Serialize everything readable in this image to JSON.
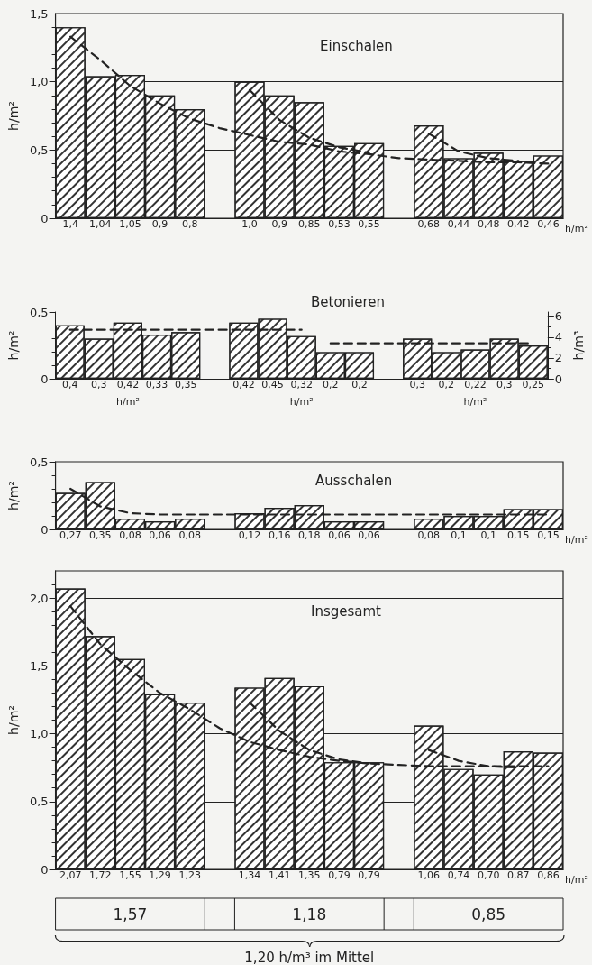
{
  "chart_data": [
    {
      "type": "bar",
      "title": "Einschalen",
      "ylabel": "h/m²",
      "categories": [
        null,
        null,
        null,
        null,
        null,
        null,
        null,
        null,
        null,
        null,
        null,
        null,
        null,
        null,
        null,
        null,
        null
      ],
      "series": [
        {
          "type": "bar",
          "color": "#ffffff",
          "values": [
            1.4,
            1.04,
            1.05,
            0.9,
            0.8,
            null,
            1.0,
            0.9,
            0.85,
            0.53,
            0.55,
            null,
            0.68,
            0.44,
            0.48,
            0.42,
            0.46
          ],
          "value_labels": [
            "1,4",
            "1,04",
            "1,05",
            "0,9",
            "0,8",
            null,
            "1,0",
            "0,9",
            "0,85",
            "0,53",
            "0,55",
            null,
            "0,68",
            "0,44",
            "0,48",
            "0,42",
            "0,46"
          ]
        },
        {
          "type": "line",
          "color": "#222222",
          "line_style": "dashed",
          "marker": "none",
          "values": [
            1.33,
            1.16,
            0.97,
            0.84,
            0.73,
            0.66,
            0.61,
            0.56,
            0.54,
            0.49,
            0.47,
            0.44,
            0.43,
            0.42,
            0.41,
            0.41,
            0.4
          ]
        },
        {
          "type": "line",
          "color": "#222222",
          "line_style": "dashed",
          "marker": "none",
          "values": [
            null,
            null,
            null,
            null,
            null,
            null,
            0.94,
            0.72,
            0.59,
            0.52,
            0.48,
            null,
            null,
            null,
            null,
            null,
            null
          ]
        },
        {
          "type": "line",
          "color": "#222222",
          "line_style": "dashed",
          "marker": "none",
          "values": [
            null,
            null,
            null,
            null,
            null,
            null,
            null,
            null,
            null,
            null,
            null,
            null,
            0.62,
            0.49,
            0.44,
            0.42,
            null
          ]
        }
      ],
      "ylim": [
        0,
        1.5
      ],
      "yticks": [
        {
          "value": 0,
          "label": "0"
        },
        {
          "value": 0.5,
          "label": "0,5"
        },
        {
          "value": 1,
          "label": "1,0"
        },
        {
          "value": 1.5,
          "label": "1,5"
        }
      ],
      "grid": "y",
      "annotations": [
        "h/m²"
      ]
    },
    {
      "type": "bar",
      "title": "Betonieren",
      "ylabel": "h/m²",
      "y2label": "h/m³",
      "categories": [
        null,
        null,
        null,
        null,
        null,
        null,
        null,
        null,
        null,
        null,
        null,
        null,
        null,
        null,
        null,
        null,
        null
      ],
      "series": [
        {
          "type": "bar",
          "color": "#ffffff",
          "values": [
            0.4,
            0.3,
            0.42,
            0.33,
            0.35,
            null,
            0.42,
            0.45,
            0.32,
            0.2,
            0.2,
            null,
            0.3,
            0.2,
            0.22,
            0.3,
            0.25
          ],
          "value_labels": [
            "0,4",
            "0,3",
            "0,42",
            "0,33",
            "0,35",
            null,
            "0,42",
            "0,45",
            "0,32",
            "0,2",
            "0,2",
            null,
            "0,3",
            "0,2",
            "0,22",
            "0,3",
            "0,25"
          ]
        },
        {
          "type": "line",
          "axis": "y2",
          "color": "#222222",
          "line_style": "dashed",
          "marker": "none",
          "values": [
            4.7,
            4.7,
            4.7,
            4.7,
            4.7,
            4.7,
            4.7,
            4.7,
            4.7,
            null,
            null,
            null,
            null,
            null,
            null,
            null,
            null
          ]
        },
        {
          "type": "line",
          "axis": "y2",
          "color": "#222222",
          "line_style": "dashed",
          "marker": "none",
          "values": [
            null,
            null,
            null,
            null,
            null,
            null,
            null,
            null,
            null,
            3.4,
            3.4,
            3.4,
            3.4,
            3.4,
            3.4,
            3.4,
            3.4
          ]
        }
      ],
      "ylim": [
        0,
        0.5
      ],
      "yticks": [
        {
          "value": 0,
          "label": "0"
        },
        {
          "value": 0.5,
          "label": "0,5"
        }
      ],
      "y2lim": [
        0,
        6.4
      ],
      "y2ticks": [
        0,
        2,
        4,
        6
      ],
      "grid": false,
      "annotations": [
        "h/m²",
        "h/m²",
        "h/m²"
      ]
    },
    {
      "type": "bar",
      "title": "Ausschalen",
      "ylabel": "h/m²",
      "categories": [
        null,
        null,
        null,
        null,
        null,
        null,
        null,
        null,
        null,
        null,
        null,
        null,
        null,
        null,
        null,
        null,
        null
      ],
      "series": [
        {
          "type": "bar",
          "color": "#ffffff",
          "values": [
            0.27,
            0.35,
            0.08,
            0.06,
            0.08,
            null,
            0.12,
            0.16,
            0.18,
            0.06,
            0.06,
            null,
            0.08,
            0.1,
            0.1,
            0.15,
            0.15
          ],
          "value_labels": [
            "0,27",
            "0,35",
            "0,08",
            "0,06",
            "0,08",
            null,
            "0,12",
            "0,16",
            "0,18",
            "0,06",
            "0,06",
            null,
            "0,08",
            "0,1",
            "0,1",
            "0,15",
            "0,15"
          ]
        },
        {
          "type": "line",
          "color": "#222222",
          "line_style": "dashed",
          "marker": "none",
          "values": [
            0.3,
            0.17,
            0.12,
            0.11,
            0.11,
            0.11,
            0.11,
            0.11,
            0.11,
            0.11,
            0.11,
            0.11,
            0.11,
            0.11,
            0.11,
            0.11,
            0.11
          ]
        }
      ],
      "ylim": [
        0,
        0.5
      ],
      "yticks": [
        {
          "value": 0,
          "label": "0"
        },
        {
          "value": 0.5,
          "label": "0,5"
        }
      ],
      "grid": false,
      "annotations": [
        "h/m²"
      ]
    },
    {
      "type": "bar",
      "title": "Insgesamt",
      "ylabel": "h/m²",
      "categories": [
        null,
        null,
        null,
        null,
        null,
        null,
        null,
        null,
        null,
        null,
        null,
        null,
        null,
        null,
        null,
        null,
        null
      ],
      "series": [
        {
          "type": "bar",
          "color": "#ffffff",
          "values": [
            2.07,
            1.72,
            1.55,
            1.29,
            1.23,
            null,
            1.34,
            1.41,
            1.35,
            0.79,
            0.79,
            null,
            1.06,
            0.74,
            0.7,
            0.87,
            0.86
          ],
          "value_labels": [
            "2,07",
            "1,72",
            "1,55",
            "1,29",
            "1,23",
            null,
            "1,34",
            "1,41",
            "1,35",
            "0,79",
            "0,79",
            null,
            "1,06",
            "0,74",
            "0,70",
            "0,87",
            "0,86"
          ]
        },
        {
          "type": "line",
          "color": "#222222",
          "line_style": "dashed",
          "marker": "none",
          "values": [
            1.94,
            1.66,
            1.47,
            1.3,
            1.18,
            1.04,
            0.94,
            0.88,
            0.83,
            0.8,
            0.78,
            0.77,
            0.76,
            0.76,
            0.76,
            0.76,
            0.76
          ]
        },
        {
          "type": "line",
          "color": "#222222",
          "line_style": "dashed",
          "marker": "none",
          "values": [
            null,
            null,
            null,
            null,
            null,
            null,
            1.23,
            1.02,
            0.88,
            0.81,
            0.78,
            null,
            null,
            null,
            null,
            null,
            null
          ]
        },
        {
          "type": "line",
          "color": "#222222",
          "line_style": "dashed",
          "marker": "none",
          "values": [
            null,
            null,
            null,
            null,
            null,
            null,
            null,
            null,
            null,
            null,
            null,
            null,
            0.88,
            0.8,
            0.76,
            0.75,
            null
          ]
        }
      ],
      "ylim": [
        0,
        2.2
      ],
      "yticks": [
        {
          "value": 0,
          "label": "0"
        },
        {
          "value": 0.5,
          "label": "0,5"
        },
        {
          "value": 1,
          "label": "1,0"
        },
        {
          "value": 1.5,
          "label": "1,5"
        },
        {
          "value": 2,
          "label": "2,0"
        }
      ],
      "grid": "y",
      "annotations": [
        "h/m²",
        "1,57",
        "1,18",
        "0,85",
        "1,20 h/m³ im Mittel"
      ]
    }
  ]
}
